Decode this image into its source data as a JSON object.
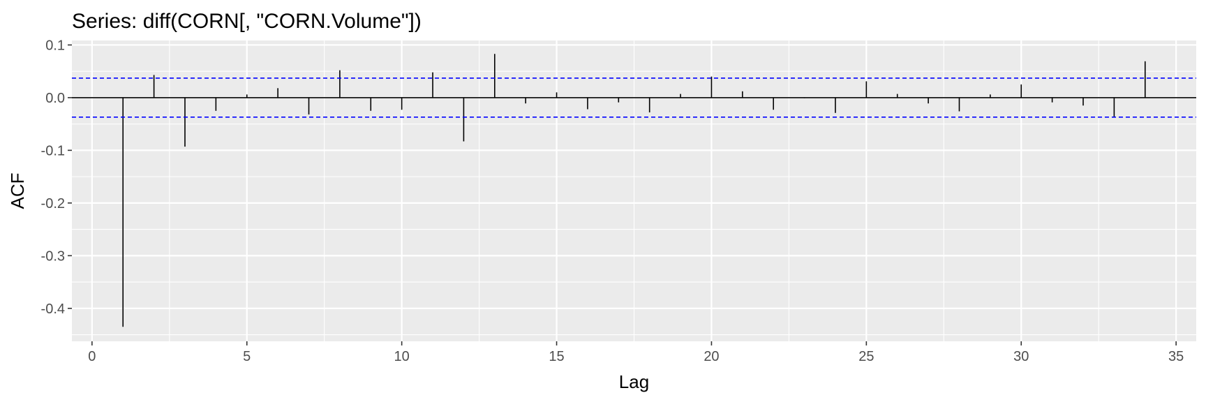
{
  "chart_data": {
    "type": "bar",
    "title": "Series: diff(CORN[, \"CORN.Volume\"])",
    "xlabel": "Lag",
    "ylabel": "ACF",
    "xlim": [
      -0.65,
      35.65
    ],
    "ylim": [
      -0.4625,
      0.1085
    ],
    "x_ticks": [
      0,
      5,
      10,
      15,
      20,
      25,
      30,
      35
    ],
    "x_tick_labels": [
      "0",
      "5",
      "10",
      "15",
      "20",
      "25",
      "30",
      "35"
    ],
    "y_ticks": [
      0.1,
      0.0,
      -0.1,
      -0.2,
      -0.3,
      -0.4
    ],
    "y_tick_labels": [
      "0.1",
      "0.0",
      "-0.1",
      "-0.2",
      "-0.3",
      "-0.4"
    ],
    "confidence_bound": 0.037,
    "grid": true,
    "colors": {
      "panel_background": "#ebebeb",
      "gridline": "#ffffff",
      "bar": "#000000",
      "confidence_line": "#0000ff",
      "tick_label": "#4d4d4d"
    },
    "lags": [
      1,
      2,
      3,
      4,
      5,
      6,
      7,
      8,
      9,
      10,
      11,
      12,
      13,
      14,
      15,
      16,
      17,
      18,
      19,
      20,
      21,
      22,
      23,
      24,
      25,
      26,
      27,
      28,
      29,
      30,
      31,
      32,
      33,
      34
    ],
    "values": [
      -0.435,
      0.043,
      -0.093,
      -0.025,
      0.006,
      0.018,
      -0.032,
      0.052,
      -0.025,
      -0.023,
      0.048,
      -0.083,
      0.083,
      -0.011,
      0.01,
      -0.022,
      -0.009,
      -0.028,
      0.007,
      0.04,
      0.012,
      -0.023,
      -0.001,
      -0.029,
      0.031,
      0.007,
      -0.011,
      -0.026,
      0.006,
      0.025,
      -0.009,
      -0.015,
      -0.037,
      0.069
    ]
  }
}
